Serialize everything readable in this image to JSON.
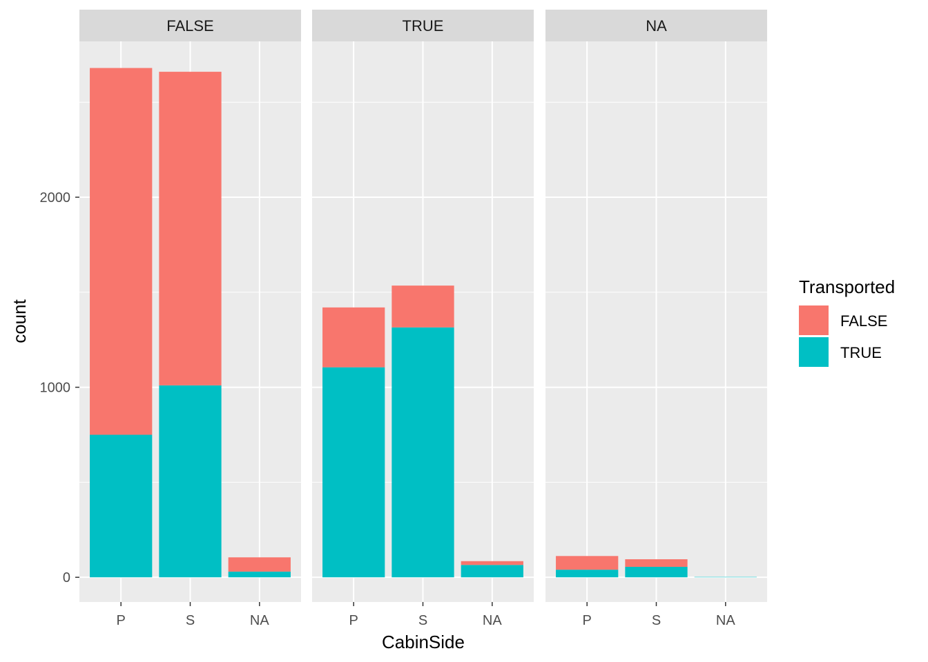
{
  "chart_data": {
    "type": "bar",
    "stacked": true,
    "facet_variable": "",
    "facets": [
      "FALSE",
      "TRUE",
      "NA"
    ],
    "categories": [
      "P",
      "S",
      "NA"
    ],
    "xlabel": "CabinSide",
    "ylabel": "count",
    "ylim": [
      -130,
      2820
    ],
    "yticks": [
      0,
      1000,
      2000
    ],
    "ytick_labels": [
      "0",
      "1000",
      "2000"
    ],
    "grid": true,
    "legend": {
      "title": "Transported",
      "position": "right",
      "entries": [
        {
          "label": "FALSE",
          "color": "#F8766D"
        },
        {
          "label": "TRUE",
          "color": "#00BFC4"
        }
      ]
    },
    "panels": [
      {
        "facet": "FALSE",
        "series": [
          {
            "name": "TRUE",
            "color": "#00BFC4",
            "values": [
              750,
              1010,
              30
            ]
          },
          {
            "name": "FALSE",
            "color": "#F8766D",
            "values": [
              1930,
              1650,
              75
            ]
          }
        ]
      },
      {
        "facet": "TRUE",
        "series": [
          {
            "name": "TRUE",
            "color": "#00BFC4",
            "values": [
              1105,
              1315,
              65
            ]
          },
          {
            "name": "FALSE",
            "color": "#F8766D",
            "values": [
              315,
              220,
              20
            ]
          }
        ]
      },
      {
        "facet": "NA",
        "series": [
          {
            "name": "TRUE",
            "color": "#00BFC4",
            "values": [
              40,
              55,
              2
            ]
          },
          {
            "name": "FALSE",
            "color": "#F8766D",
            "values": [
              72,
              40,
              0
            ]
          }
        ]
      }
    ]
  }
}
